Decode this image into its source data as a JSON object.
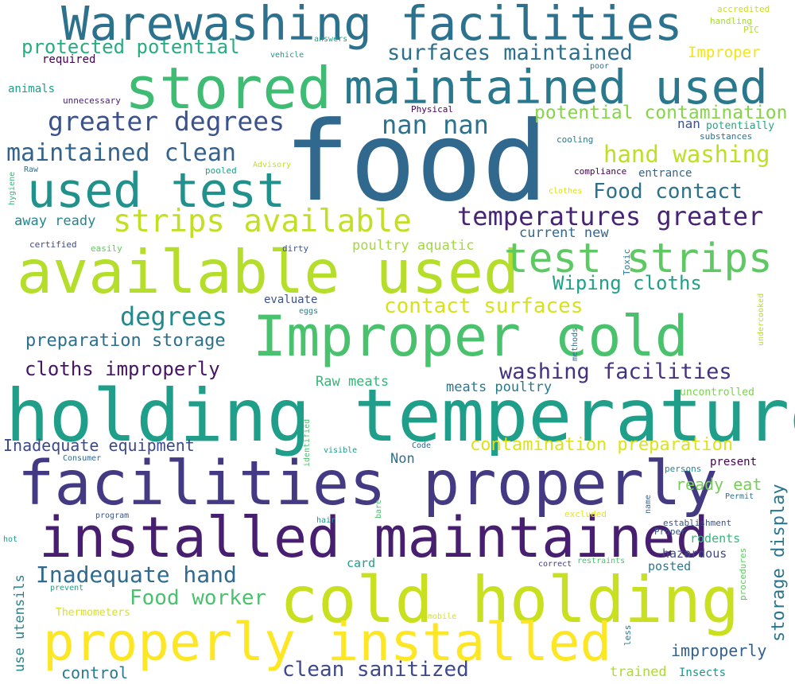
{
  "words": [
    {
      "text": "food",
      "color": "#31688e"
    },
    {
      "text": "holding temperatures",
      "color": "#1f9e89"
    },
    {
      "text": "facilities properly",
      "color": "#443a83"
    },
    {
      "text": "installed maintained",
      "color": "#481f70"
    },
    {
      "text": "cold holding",
      "color": "#c8e020"
    },
    {
      "text": "properly installed",
      "color": "#fde725"
    },
    {
      "text": "available used",
      "color": "#b5de2b"
    },
    {
      "text": "Warewashing facilities",
      "color": "#2c728e"
    },
    {
      "text": "stored",
      "color": "#3fbc73"
    },
    {
      "text": "maintained used",
      "color": "#2a788e"
    },
    {
      "text": "Improper cold",
      "color": "#4ac16d"
    },
    {
      "text": "used test",
      "color": "#21918c"
    },
    {
      "text": "test strips",
      "color": "#5ec962"
    },
    {
      "text": "strips available",
      "color": "#c2df23"
    },
    {
      "text": "greater degrees",
      "color": "#3b528b"
    },
    {
      "text": "maintained clean",
      "color": "#33638d"
    },
    {
      "text": "nan nan",
      "color": "#2c728e"
    },
    {
      "text": "temperatures greater",
      "color": "#482475"
    },
    {
      "text": "surfaces maintained",
      "color": "#2d708e"
    },
    {
      "text": "protected potential",
      "color": "#26ad81"
    },
    {
      "text": "potential contamination",
      "color": "#86d549"
    },
    {
      "text": "hand washing",
      "color": "#bddf26"
    },
    {
      "text": "Food contact",
      "color": "#2c728e"
    },
    {
      "text": "Wiping cloths",
      "color": "#1fa187"
    },
    {
      "text": "contact surfaces",
      "color": "#d8e219"
    },
    {
      "text": "washing facilities",
      "color": "#46337e"
    },
    {
      "text": "degrees",
      "color": "#23898e"
    },
    {
      "text": "preparation storage",
      "color": "#2d708e"
    },
    {
      "text": "cloths improperly",
      "color": "#471365"
    },
    {
      "text": "Inadequate hand",
      "color": "#306a8e"
    },
    {
      "text": "Inadequate equipment",
      "color": "#3e4989"
    },
    {
      "text": "contamination preparation",
      "color": "#dde318"
    },
    {
      "text": "Food worker",
      "color": "#4ac16d"
    },
    {
      "text": "clean sanitized",
      "color": "#3e4a89"
    },
    {
      "text": "storage display",
      "color": "#2a768e"
    },
    {
      "text": "use utensils",
      "color": "#25858e"
    },
    {
      "text": "ready eat",
      "color": "#74d055"
    },
    {
      "text": "Raw meats",
      "color": "#35b779"
    },
    {
      "text": "meats poultry",
      "color": "#2a788e"
    },
    {
      "text": "poultry aquatic",
      "color": "#a2da37"
    },
    {
      "text": "away ready",
      "color": "#25858e"
    },
    {
      "text": "Improper",
      "color": "#f1e51d"
    },
    {
      "text": "current new",
      "color": "#31688e"
    },
    {
      "text": "improperly",
      "color": "#355f8d"
    },
    {
      "text": "control",
      "color": "#2a788e"
    },
    {
      "text": "trained",
      "color": "#addc30"
    },
    {
      "text": "Insects",
      "color": "#1f968b"
    },
    {
      "text": "hazardous",
      "color": "#3e4a89"
    },
    {
      "text": "rodents",
      "color": "#35b779"
    },
    {
      "text": "posted",
      "color": "#2a788e"
    },
    {
      "text": "card",
      "color": "#1f9e89"
    },
    {
      "text": "Non",
      "color": "#2c728e"
    },
    {
      "text": "evaluate",
      "color": "#3b528b"
    },
    {
      "text": "present",
      "color": "#440154"
    },
    {
      "text": "uncontrolled",
      "color": "#7ad151"
    },
    {
      "text": "entrance",
      "color": "#31688e"
    },
    {
      "text": "nan",
      "color": "#3b528b"
    },
    {
      "text": "potentially",
      "color": "#22a884"
    },
    {
      "text": "required",
      "color": "#440154"
    },
    {
      "text": "animals",
      "color": "#1f9e89"
    },
    {
      "text": "Thermometers",
      "color": "#d8e219"
    },
    {
      "text": "accredited",
      "color": "#c8e020"
    },
    {
      "text": "handling",
      "color": "#a5db36"
    },
    {
      "text": "PIC",
      "color": "#b5de2b"
    },
    {
      "text": "answers",
      "color": "#1f9e89"
    },
    {
      "text": "vehicle",
      "color": "#1f968b"
    },
    {
      "text": "poor",
      "color": "#2c728e"
    },
    {
      "text": "unnecessary",
      "color": "#481f70"
    },
    {
      "text": "Physical",
      "color": "#440154"
    },
    {
      "text": "cooling",
      "color": "#2a788e"
    },
    {
      "text": "substances",
      "color": "#2d708e"
    },
    {
      "text": "compliance",
      "color": "#440154"
    },
    {
      "text": "Raw",
      "color": "#2d708e"
    },
    {
      "text": "pooled",
      "color": "#1fa187"
    },
    {
      "text": "Advisory",
      "color": "#c2df23"
    },
    {
      "text": "hygiene",
      "color": "#35b779"
    },
    {
      "text": "clothes",
      "color": "#d8e219"
    },
    {
      "text": "certified",
      "color": "#3e4989"
    },
    {
      "text": "easily",
      "color": "#5ec962"
    },
    {
      "text": "dirty",
      "color": "#3b528b"
    },
    {
      "text": "Toxic",
      "color": "#2a788e"
    },
    {
      "text": "eggs",
      "color": "#25858e"
    },
    {
      "text": "methods",
      "color": "#2c728e"
    },
    {
      "text": "undercooked",
      "color": "#b5de2b"
    },
    {
      "text": "identified",
      "color": "#4ac16d"
    },
    {
      "text": "visible",
      "color": "#1f968b"
    },
    {
      "text": "Code",
      "color": "#31688e"
    },
    {
      "text": "Consumer",
      "color": "#31688e"
    },
    {
      "text": "persons",
      "color": "#23898e"
    },
    {
      "text": "program",
      "color": "#3b528b"
    },
    {
      "text": "bare",
      "color": "#4ac16d"
    },
    {
      "text": "hair",
      "color": "#1f968b"
    },
    {
      "text": "name",
      "color": "#31688e"
    },
    {
      "text": "excluded",
      "color": "#e5e419"
    },
    {
      "text": "establishment",
      "color": "#3b528b"
    },
    {
      "text": "Permit",
      "color": "#2c728e"
    },
    {
      "text": "Proper",
      "color": "#3b528b"
    },
    {
      "text": "hot",
      "color": "#1f9e89"
    },
    {
      "text": "prevent",
      "color": "#20a386"
    },
    {
      "text": "correct",
      "color": "#443a83"
    },
    {
      "text": "restraints",
      "color": "#4ac16d"
    },
    {
      "text": "procedures",
      "color": "#5ec962"
    },
    {
      "text": "mobile",
      "color": "#d8e219"
    },
    {
      "text": "less",
      "color": "#2a788e"
    }
  ]
}
